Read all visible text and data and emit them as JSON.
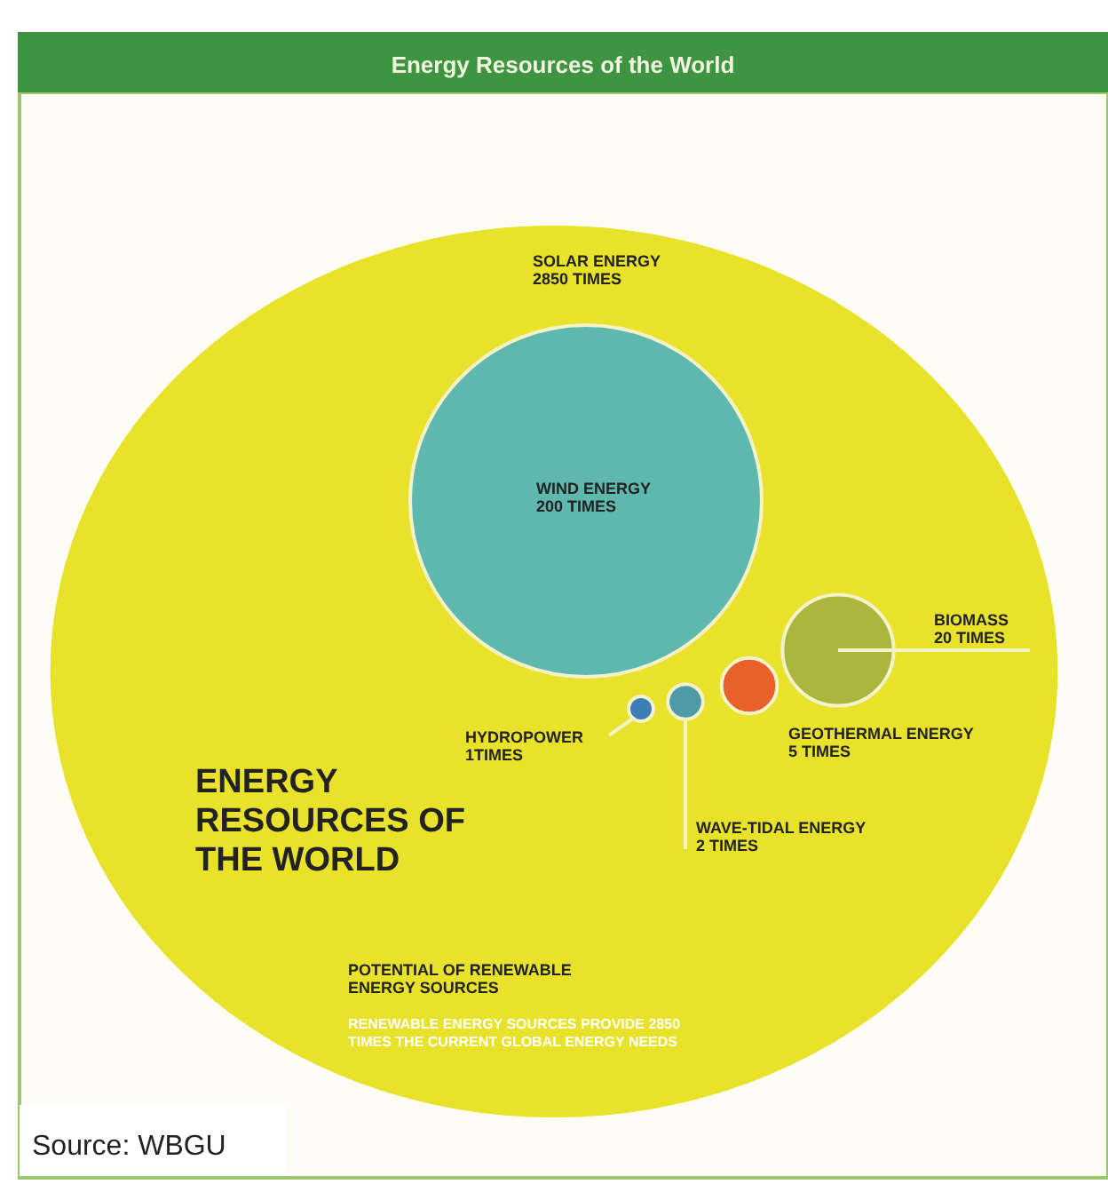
{
  "chart_data": {
    "type": "other",
    "title": "Energy Resources of the World",
    "categories": [
      "SOLAR ENERGY",
      "WIND ENERGY",
      "BIOMASS",
      "GEOTHERMAL ENERGY",
      "WAVE-TIDAL ENERGY",
      "HYDROPOWER"
    ],
    "values": [
      2850,
      200,
      20,
      5,
      2,
      1
    ],
    "value_labels": [
      "2850 TIMES",
      "200 TIMES",
      "20 TIMES",
      "5 TIMES",
      "2 TIMES",
      "1TIMES"
    ],
    "colors": [
      "#e8e22a",
      "#5fb8ae",
      "#a9b83c",
      "#e8602a",
      "#4f9aa8",
      "#3f7fb8"
    ],
    "annotations": [
      "ENERGY RESOURCES OF THE WORLD",
      "POTENTIAL OF RENEWABLE ENERGY SOURCES",
      "RENEWABLE ENERGY SOURCES PROVIDE 2850 TIMES THE CURRENT GLOBAL ENERGY NEEDS",
      "Source: WBGU"
    ]
  }
}
